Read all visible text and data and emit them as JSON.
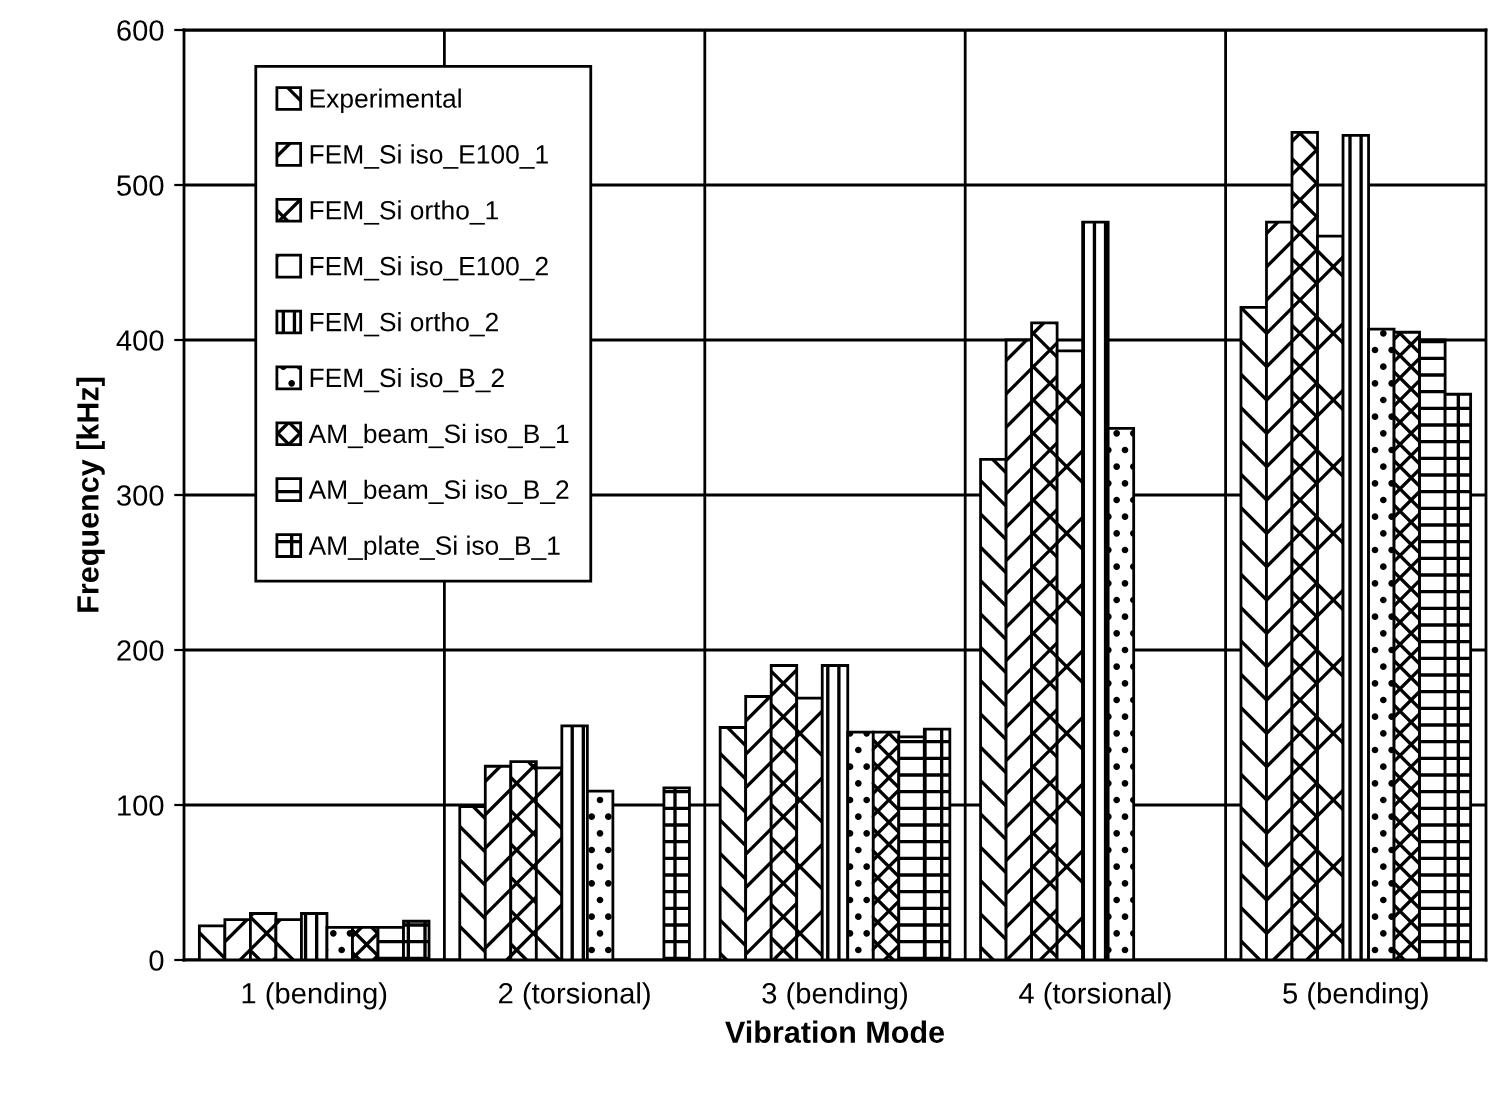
{
  "chart_data": {
    "type": "bar",
    "xlabel": "Vibration Mode",
    "ylabel": "Frequency [kHz]",
    "categories": [
      "1 (bending)",
      "2 (torsional)",
      "3 (bending)",
      "4 (torsional)",
      "5 (bending)"
    ],
    "series": [
      {
        "name": "Experimental",
        "color": "#000000",
        "values": [
          22,
          99,
          150,
          323,
          421
        ]
      },
      {
        "name": "FEM_Si iso_E100_1",
        "color": "#000000",
        "values": [
          26,
          125,
          170,
          400,
          476
        ]
      },
      {
        "name": "FEM_Si ortho_1",
        "color": "#000000",
        "values": [
          30,
          128,
          190,
          411,
          534
        ]
      },
      {
        "name": "FEM_Si iso_E100_2",
        "color": "#000000",
        "values": [
          26,
          124,
          169,
          393,
          467
        ]
      },
      {
        "name": "FEM_Si ortho_2",
        "color": "#000000",
        "values": [
          30,
          151,
          190,
          476,
          532
        ]
      },
      {
        "name": "FEM_Si iso_B_2",
        "color": "#000000",
        "values": [
          21,
          109,
          147,
          343,
          407
        ]
      },
      {
        "name": "AM_beam_Si iso_B_1",
        "color": "#000000",
        "values": [
          21,
          null,
          147,
          null,
          405
        ]
      },
      {
        "name": "AM_beam_Si iso_B_2",
        "color": "#000000",
        "values": [
          21,
          null,
          144,
          null,
          400
        ]
      },
      {
        "name": "AM_plate_Si iso_B_1",
        "color": "#000000",
        "values": [
          25,
          111,
          149,
          null,
          365
        ]
      }
    ],
    "ylim": [
      0,
      600
    ],
    "yticks": [
      0,
      100,
      200,
      300,
      400,
      500,
      600
    ],
    "grid": true,
    "legend": "top left"
  }
}
